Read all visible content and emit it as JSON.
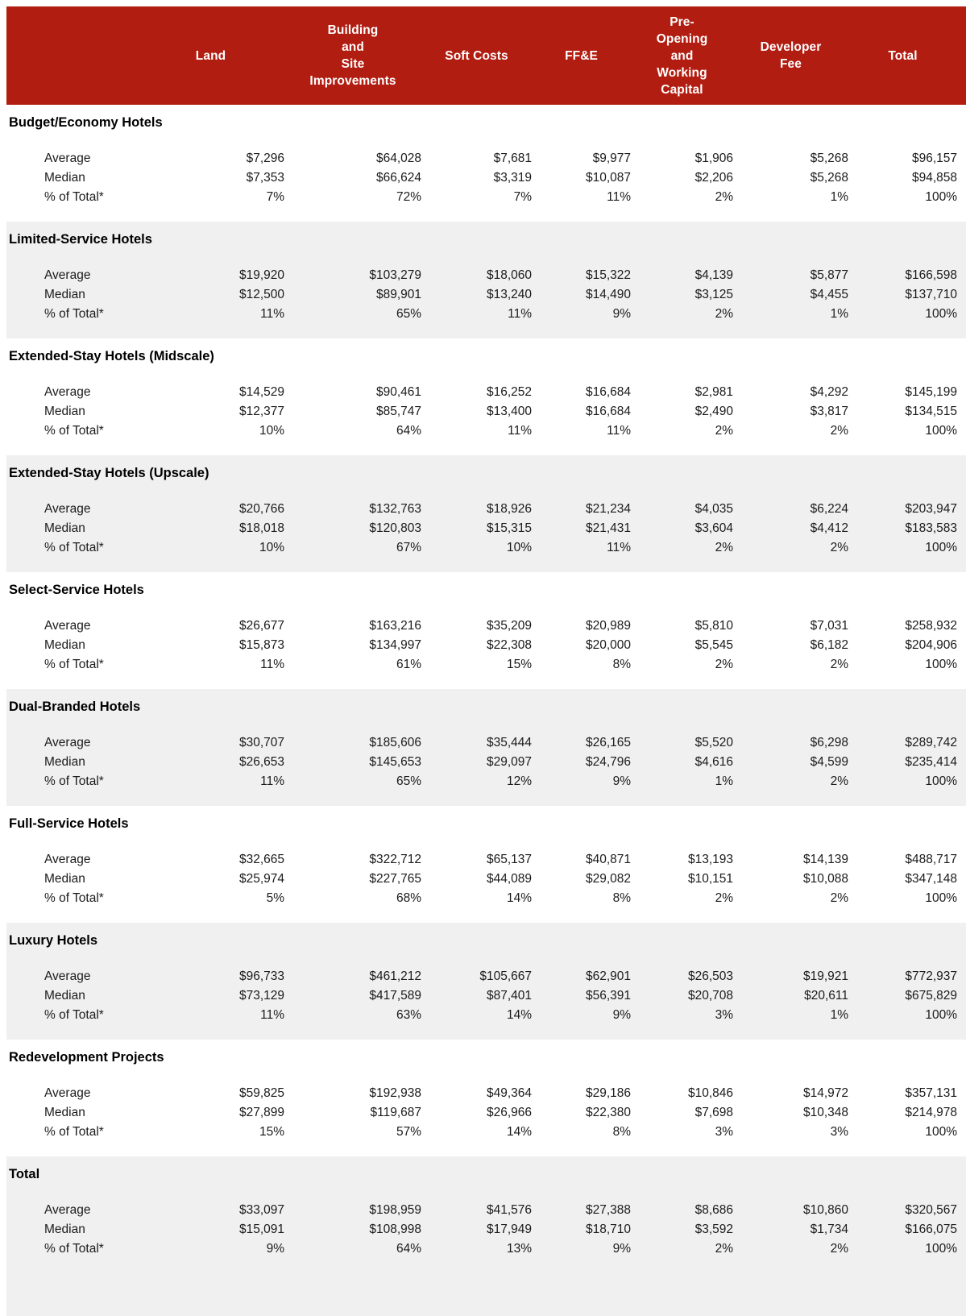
{
  "table": {
    "columns": [
      "Land",
      "Building\nand\nSite\nImprovements",
      "Soft Costs",
      "FF&E",
      "Pre-\nOpening\nand\nWorking\nCapital",
      "Developer\nFee",
      "Total"
    ]
  },
  "sections": [
    {
      "title": "Budget/Economy Hotels",
      "rows": [
        {
          "label": "Average",
          "values": [
            "$7,296",
            "$64,028",
            "$7,681",
            "$9,977",
            "$1,906",
            "$5,268",
            "$96,157"
          ]
        },
        {
          "label": "Median",
          "values": [
            "$7,353",
            "$66,624",
            "$3,319",
            "$10,087",
            "$2,206",
            "$5,268",
            "$94,858"
          ]
        },
        {
          "label": "% of Total*",
          "values": [
            "7%",
            "72%",
            "7%",
            "11%",
            "2%",
            "1%",
            "100%"
          ]
        }
      ]
    },
    {
      "title": "Limited-Service Hotels",
      "rows": [
        {
          "label": "Average",
          "values": [
            "$19,920",
            "$103,279",
            "$18,060",
            "$15,322",
            "$4,139",
            "$5,877",
            "$166,598"
          ]
        },
        {
          "label": "Median",
          "values": [
            "$12,500",
            "$89,901",
            "$13,240",
            "$14,490",
            "$3,125",
            "$4,455",
            "$137,710"
          ]
        },
        {
          "label": "% of Total*",
          "values": [
            "11%",
            "65%",
            "11%",
            "9%",
            "2%",
            "1%",
            "100%"
          ]
        }
      ]
    },
    {
      "title": "Extended-Stay Hotels (Midscale)",
      "rows": [
        {
          "label": "Average",
          "values": [
            "$14,529",
            "$90,461",
            "$16,252",
            "$16,684",
            "$2,981",
            "$4,292",
            "$145,199"
          ]
        },
        {
          "label": "Median",
          "values": [
            "$12,377",
            "$85,747",
            "$13,400",
            "$16,684",
            "$2,490",
            "$3,817",
            "$134,515"
          ]
        },
        {
          "label": "% of Total*",
          "values": [
            "10%",
            "64%",
            "11%",
            "11%",
            "2%",
            "2%",
            "100%"
          ]
        }
      ]
    },
    {
      "title": "Extended-Stay Hotels (Upscale)",
      "rows": [
        {
          "label": "Average",
          "values": [
            "$20,766",
            "$132,763",
            "$18,926",
            "$21,234",
            "$4,035",
            "$6,224",
            "$203,947"
          ]
        },
        {
          "label": "Median",
          "values": [
            "$18,018",
            "$120,803",
            "$15,315",
            "$21,431",
            "$3,604",
            "$4,412",
            "$183,583"
          ]
        },
        {
          "label": "% of Total*",
          "values": [
            "10%",
            "67%",
            "10%",
            "11%",
            "2%",
            "2%",
            "100%"
          ]
        }
      ]
    },
    {
      "title": "Select-Service Hotels",
      "rows": [
        {
          "label": "Average",
          "values": [
            "$26,677",
            "$163,216",
            "$35,209",
            "$20,989",
            "$5,810",
            "$7,031",
            "$258,932"
          ]
        },
        {
          "label": "Median",
          "values": [
            "$15,873",
            "$134,997",
            "$22,308",
            "$20,000",
            "$5,545",
            "$6,182",
            "$204,906"
          ]
        },
        {
          "label": "% of Total*",
          "values": [
            "11%",
            "61%",
            "15%",
            "8%",
            "2%",
            "2%",
            "100%"
          ]
        }
      ]
    },
    {
      "title": "Dual-Branded Hotels",
      "rows": [
        {
          "label": "Average",
          "values": [
            "$30,707",
            "$185,606",
            "$35,444",
            "$26,165",
            "$5,520",
            "$6,298",
            "$289,742"
          ]
        },
        {
          "label": "Median",
          "values": [
            "$26,653",
            "$145,653",
            "$29,097",
            "$24,796",
            "$4,616",
            "$4,599",
            "$235,414"
          ]
        },
        {
          "label": "% of Total*",
          "values": [
            "11%",
            "65%",
            "12%",
            "9%",
            "1%",
            "2%",
            "100%"
          ]
        }
      ]
    },
    {
      "title": "Full-Service Hotels",
      "rows": [
        {
          "label": "Average",
          "values": [
            "$32,665",
            "$322,712",
            "$65,137",
            "$40,871",
            "$13,193",
            "$14,139",
            "$488,717"
          ]
        },
        {
          "label": "Median",
          "values": [
            "$25,974",
            "$227,765",
            "$44,089",
            "$29,082",
            "$10,151",
            "$10,088",
            "$347,148"
          ]
        },
        {
          "label": "% of Total*",
          "values": [
            "5%",
            "68%",
            "14%",
            "8%",
            "2%",
            "2%",
            "100%"
          ]
        }
      ]
    },
    {
      "title": "Luxury Hotels",
      "rows": [
        {
          "label": "Average",
          "values": [
            "$96,733",
            "$461,212",
            "$105,667",
            "$62,901",
            "$26,503",
            "$19,921",
            "$772,937"
          ]
        },
        {
          "label": "Median",
          "values": [
            "$73,129",
            "$417,589",
            "$87,401",
            "$56,391",
            "$20,708",
            "$20,611",
            "$675,829"
          ]
        },
        {
          "label": "% of Total*",
          "values": [
            "11%",
            "63%",
            "14%",
            "9%",
            "3%",
            "1%",
            "100%"
          ]
        }
      ]
    },
    {
      "title": "Redevelopment Projects",
      "rows": [
        {
          "label": "Average",
          "values": [
            "$59,825",
            "$192,938",
            "$49,364",
            "$29,186",
            "$10,846",
            "$14,972",
            "$357,131"
          ]
        },
        {
          "label": "Median",
          "values": [
            "$27,899",
            "$119,687",
            "$26,966",
            "$22,380",
            "$7,698",
            "$10,348",
            "$214,978"
          ]
        },
        {
          "label": "% of Total*",
          "values": [
            "15%",
            "57%",
            "14%",
            "8%",
            "3%",
            "3%",
            "100%"
          ]
        }
      ]
    },
    {
      "title": "Total",
      "rows": [
        {
          "label": "Average",
          "values": [
            "$33,097",
            "$198,959",
            "$41,576",
            "$27,388",
            "$8,686",
            "$10,860",
            "$320,567"
          ]
        },
        {
          "label": "Median",
          "values": [
            "$15,091",
            "$108,998",
            "$17,949",
            "$18,710",
            "$3,592",
            "$1,734",
            "$166,075"
          ]
        },
        {
          "label": "% of Total*",
          "values": [
            "9%",
            "64%",
            "13%",
            "9%",
            "2%",
            "2%",
            "100%"
          ]
        }
      ]
    }
  ],
  "colors": {
    "header_bg": "#B21D11",
    "header_text": "#FFFFFF",
    "alt_band_bg": "#F0F0F0",
    "body_text": "#1B1B1B"
  }
}
